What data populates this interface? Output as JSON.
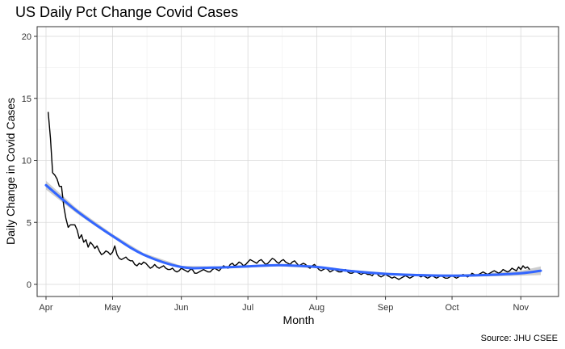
{
  "chart_data": {
    "type": "line",
    "title": "US Daily Pct Change Covid Cases",
    "xlabel": "Month",
    "ylabel": "Daily Change in Covid Cases",
    "caption": "Source: JHU CSEE",
    "ylim": [
      0,
      20
    ],
    "yticks": [
      0,
      5,
      10,
      15,
      20
    ],
    "xlim": [
      "2020-03-28",
      "2020-11-18"
    ],
    "xticks": [
      {
        "date": "2020-04-01",
        "label": "Apr"
      },
      {
        "date": "2020-05-01",
        "label": "May"
      },
      {
        "date": "2020-06-01",
        "label": "Jun"
      },
      {
        "date": "2020-07-01",
        "label": "Jul"
      },
      {
        "date": "2020-08-01",
        "label": "Aug"
      },
      {
        "date": "2020-09-01",
        "label": "Sep"
      },
      {
        "date": "2020-10-01",
        "label": "Oct"
      },
      {
        "date": "2020-11-01",
        "label": "Nov"
      }
    ],
    "grid": true,
    "colors": {
      "daily": "#000000",
      "smooth": "#3366ff",
      "band": "#b3b3b3",
      "grid": "#d9d9d9",
      "minor_grid": "#eeeeee",
      "panel_border": "#333333"
    },
    "daily_change": {
      "start_date": "2020-04-02",
      "values": [
        13.9,
        11.8,
        9.0,
        8.8,
        8.5,
        7.9,
        7.9,
        6.3,
        5.3,
        4.6,
        4.8,
        4.8,
        4.8,
        4.4,
        3.7,
        4.0,
        3.4,
        3.6,
        3.0,
        3.4,
        3.2,
        2.9,
        3.1,
        2.7,
        2.4,
        2.5,
        2.7,
        2.6,
        2.4,
        2.6,
        3.1,
        2.4,
        2.1,
        2.0,
        2.1,
        2.2,
        2.0,
        1.9,
        1.9,
        1.6,
        1.5,
        1.7,
        1.6,
        1.8,
        1.7,
        1.5,
        1.3,
        1.4,
        1.6,
        1.4,
        1.3,
        1.4,
        1.5,
        1.3,
        1.2,
        1.2,
        1.3,
        1.1,
        1.0,
        1.1,
        1.3,
        1.2,
        1.1,
        1.0,
        1.2,
        1.2,
        0.9,
        0.9,
        1.0,
        1.1,
        1.2,
        1.1,
        1.0,
        1.0,
        1.2,
        1.3,
        1.2,
        1.1,
        1.3,
        1.5,
        1.4,
        1.3,
        1.6,
        1.7,
        1.5,
        1.6,
        1.8,
        1.7,
        1.5,
        1.6,
        1.8,
        2.0,
        1.9,
        1.8,
        1.7,
        1.9,
        2.0,
        1.8,
        1.6,
        1.7,
        1.9,
        2.1,
        2.0,
        1.8,
        1.7,
        1.9,
        2.0,
        1.8,
        1.7,
        1.6,
        1.8,
        1.9,
        1.7,
        1.5,
        1.6,
        1.7,
        1.6,
        1.4,
        1.3,
        1.5,
        1.6,
        1.4,
        1.2,
        1.1,
        1.2,
        1.3,
        1.2,
        1.0,
        1.1,
        1.2,
        1.1,
        1.0,
        1.0,
        1.1,
        1.2,
        1.0,
        0.9,
        0.9,
        1.0,
        1.0,
        0.9,
        0.8,
        0.9,
        0.9,
        0.8,
        0.8,
        0.7,
        0.9,
        0.9,
        0.7,
        0.6,
        0.7,
        0.8,
        0.7,
        0.6,
        0.5,
        0.6,
        0.5,
        0.4,
        0.5,
        0.6,
        0.7,
        0.6,
        0.5,
        0.6,
        0.7,
        0.8,
        0.7,
        0.6,
        0.7,
        0.6,
        0.5,
        0.6,
        0.7,
        0.6,
        0.5,
        0.6,
        0.7,
        0.6,
        0.5,
        0.5,
        0.6,
        0.7,
        0.6,
        0.5,
        0.6,
        0.7,
        0.8,
        0.7,
        0.6,
        0.7,
        0.9,
        0.8,
        0.7,
        0.8,
        0.9,
        1.0,
        0.9,
        0.8,
        0.9,
        1.0,
        1.1,
        1.0,
        0.9,
        1.0,
        1.2,
        1.1,
        1.0,
        1.1,
        1.3,
        1.2,
        1.1,
        1.4,
        1.2,
        1.5,
        1.3,
        1.4,
        1.2
      ]
    },
    "smoothed_trend": {
      "dates": [
        "2020-04-01",
        "2020-04-15",
        "2020-05-01",
        "2020-05-15",
        "2020-06-01",
        "2020-06-15",
        "2020-07-01",
        "2020-07-15",
        "2020-08-01",
        "2020-08-15",
        "2020-09-01",
        "2020-09-15",
        "2020-10-01",
        "2020-10-15",
        "2020-11-01",
        "2020-11-10"
      ],
      "values": [
        8.0,
        5.9,
        3.9,
        2.4,
        1.4,
        1.35,
        1.45,
        1.55,
        1.4,
        1.1,
        0.85,
        0.75,
        0.7,
        0.75,
        0.9,
        1.1
      ],
      "band_halfwidth": [
        0.35,
        0.2,
        0.15,
        0.12,
        0.1,
        0.1,
        0.1,
        0.1,
        0.1,
        0.1,
        0.1,
        0.1,
        0.1,
        0.12,
        0.2,
        0.35
      ]
    }
  }
}
